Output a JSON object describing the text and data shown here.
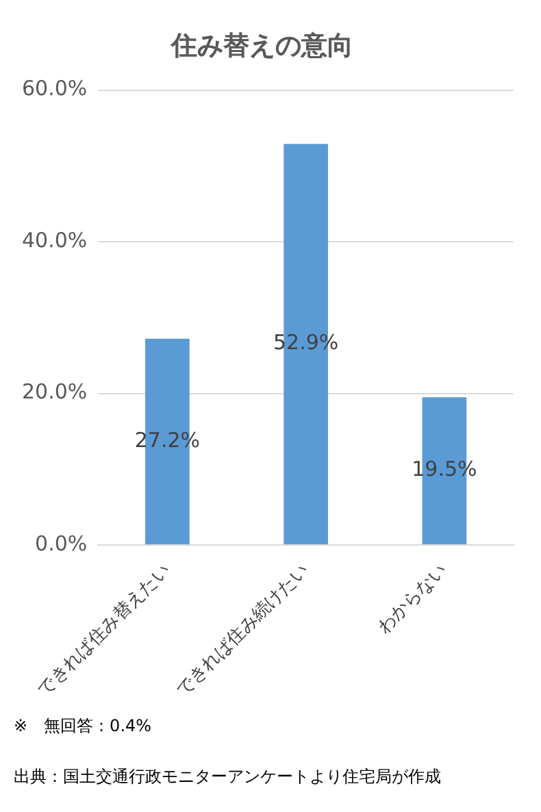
{
  "chart_data": {
    "type": "bar",
    "title": "住み替えの意向",
    "categories": [
      "できれば住み替えたい",
      "できれば住み続けたい",
      "わからない"
    ],
    "values": [
      27.2,
      52.9,
      19.5
    ],
    "color": "#5b9bd5",
    "value_labels": [
      "27.2%",
      "52.9%",
      "19.5%"
    ],
    "ylim": [
      0,
      60
    ],
    "yticks": [
      {
        "value": 0,
        "label": "0.0%"
      },
      {
        "value": 20,
        "label": "20.0%"
      },
      {
        "value": 40,
        "label": "40.0%"
      },
      {
        "value": 60,
        "label": "60.0%"
      }
    ],
    "grid": "y",
    "legend": false,
    "annotations": [
      "※　無回答：0.4%",
      "出典：国土交通行政モニターアンケートより住宅局が作成"
    ]
  }
}
